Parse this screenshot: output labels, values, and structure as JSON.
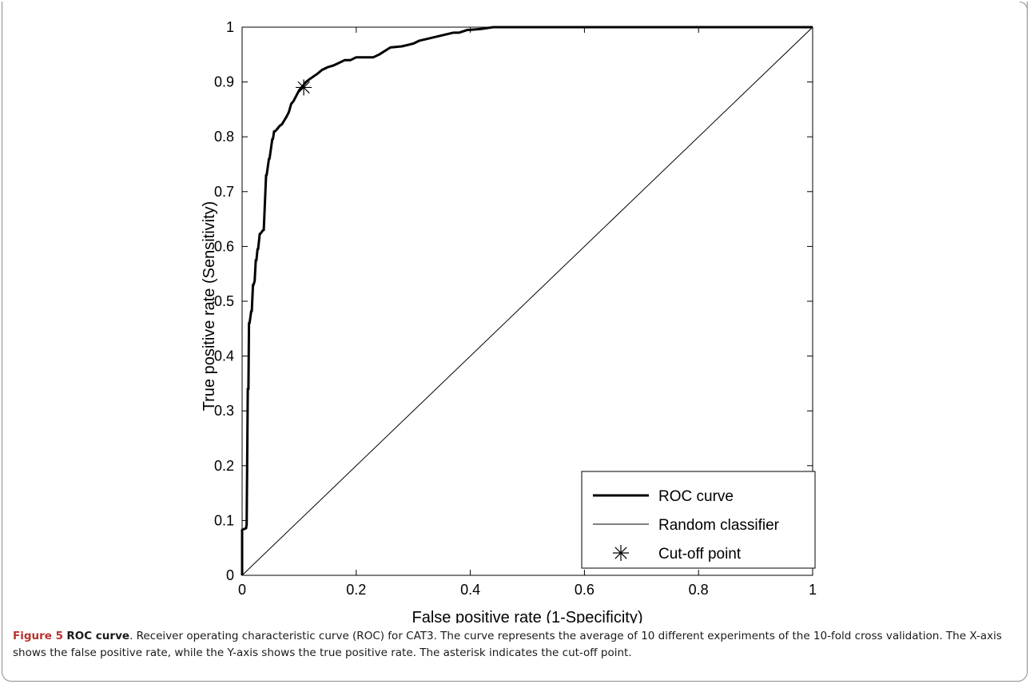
{
  "chart_data": {
    "type": "line",
    "title": "",
    "xlabel": "False positive rate (1-Specificity)",
    "ylabel": "True positive rate (Sensitivity)",
    "xlim": [
      0,
      1
    ],
    "ylim": [
      0,
      1
    ],
    "xticks": [
      "0",
      "0.2",
      "0.4",
      "0.6",
      "0.8",
      "1"
    ],
    "yticks": [
      "0",
      "0.1",
      "0.2",
      "0.3",
      "0.4",
      "0.5",
      "0.6",
      "0.7",
      "0.8",
      "0.9",
      "1"
    ],
    "grid": false,
    "legend_position": "bottom-right",
    "series": [
      {
        "name": "ROC curve",
        "style": "thick-line",
        "color": "#000000",
        "x": [
          0.0,
          0.0,
          0.007,
          0.008,
          0.01,
          0.011,
          0.012,
          0.013,
          0.016,
          0.017,
          0.019,
          0.02,
          0.022,
          0.022,
          0.024,
          0.025,
          0.027,
          0.028,
          0.031,
          0.032,
          0.037,
          0.038,
          0.042,
          0.043,
          0.047,
          0.048,
          0.053,
          0.054,
          0.056,
          0.058,
          0.062,
          0.066,
          0.07,
          0.074,
          0.078,
          0.082,
          0.086,
          0.09,
          0.095,
          0.1,
          0.104,
          0.108,
          0.112,
          0.118,
          0.125,
          0.132,
          0.14,
          0.15,
          0.16,
          0.17,
          0.18,
          0.19,
          0.2,
          0.215,
          0.23,
          0.24,
          0.26,
          0.28,
          0.3,
          0.31,
          0.33,
          0.35,
          0.37,
          0.38,
          0.395,
          0.4,
          0.42,
          0.44,
          0.45,
          0.5,
          0.6,
          0.7,
          0.8,
          0.9,
          1.0
        ],
        "y": [
          0.0,
          0.083,
          0.086,
          0.093,
          0.34,
          0.34,
          0.46,
          0.46,
          0.482,
          0.482,
          0.53,
          0.53,
          0.537,
          0.537,
          0.575,
          0.575,
          0.595,
          0.595,
          0.623,
          0.623,
          0.63,
          0.63,
          0.73,
          0.73,
          0.76,
          0.76,
          0.796,
          0.796,
          0.81,
          0.81,
          0.815,
          0.82,
          0.823,
          0.83,
          0.837,
          0.845,
          0.86,
          0.865,
          0.875,
          0.885,
          0.89,
          0.895,
          0.9,
          0.905,
          0.91,
          0.915,
          0.922,
          0.927,
          0.93,
          0.935,
          0.94,
          0.94,
          0.945,
          0.945,
          0.945,
          0.95,
          0.963,
          0.965,
          0.97,
          0.975,
          0.98,
          0.985,
          0.99,
          0.99,
          0.995,
          0.995,
          0.997,
          1.0,
          1.0,
          1.0,
          1.0,
          1.0,
          1.0,
          1.0,
          1.0
        ]
      },
      {
        "name": "Random classifier",
        "style": "thin-line",
        "color": "#000000",
        "x": [
          0,
          1
        ],
        "y": [
          0,
          1
        ]
      },
      {
        "name": "Cut-off point",
        "style": "asterisk-marker",
        "color": "#000000",
        "x": [
          0.108
        ],
        "y": [
          0.89
        ]
      }
    ]
  },
  "caption": {
    "label": "Figure 5",
    "title": "ROC curve",
    "text": ". Receiver operating characteristic curve (ROC) for CAT3. The curve represents the average of 10 different experiments of the 10-fold cross validation. The X-axis shows the false positive rate, while the Y-axis shows the true positive rate. The asterisk indicates the cut-off point."
  }
}
